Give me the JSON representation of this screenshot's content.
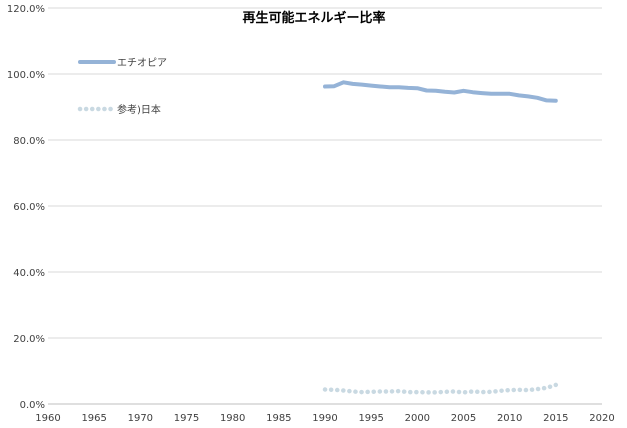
{
  "chart_data": {
    "type": "line",
    "title": "再生可能エネルギー比率",
    "xlabel": "",
    "ylabel": "",
    "xlim": [
      1960,
      2020
    ],
    "ylim": [
      0,
      120
    ],
    "x_ticks": [
      "1960",
      "1965",
      "1970",
      "1975",
      "1980",
      "1985",
      "1990",
      "1995",
      "2000",
      "2005",
      "2010",
      "2015",
      "2020"
    ],
    "y_ticks": [
      "0.0%",
      "20.0%",
      "40.0%",
      "60.0%",
      "80.0%",
      "100.0%",
      "120.0%"
    ],
    "grid": "horizontal",
    "legend_position": "top-left",
    "series": [
      {
        "name": "エチオピア",
        "color": "#95B3D7",
        "style": "solid",
        "x": [
          1990,
          1991,
          1992,
          1993,
          1994,
          1995,
          1996,
          1997,
          1998,
          1999,
          2000,
          2001,
          2002,
          2003,
          2004,
          2005,
          2006,
          2007,
          2008,
          2009,
          2010,
          2011,
          2012,
          2013,
          2014,
          2015
        ],
        "values": [
          96.2,
          96.3,
          97.5,
          97.0,
          96.8,
          96.5,
          96.2,
          96.0,
          96.0,
          95.8,
          95.7,
          95.0,
          94.9,
          94.6,
          94.4,
          94.9,
          94.5,
          94.2,
          94.0,
          94.0,
          94.0,
          93.5,
          93.2,
          92.8,
          92.0,
          91.9
        ]
      },
      {
        "name": "参考)日本",
        "color": "#C9D9E2",
        "style": "dotted",
        "x": [
          1990,
          1991,
          1992,
          1993,
          1994,
          1995,
          1996,
          1997,
          1998,
          1999,
          2000,
          2001,
          2002,
          2003,
          2004,
          2005,
          2006,
          2007,
          2008,
          2009,
          2010,
          2011,
          2012,
          2013,
          2014,
          2015
        ],
        "values": [
          4.4,
          4.3,
          4.1,
          3.8,
          3.6,
          3.7,
          3.8,
          3.8,
          3.9,
          3.6,
          3.6,
          3.5,
          3.5,
          3.7,
          3.8,
          3.5,
          3.8,
          3.6,
          3.7,
          4.0,
          4.2,
          4.3,
          4.2,
          4.5,
          4.9,
          5.8
        ]
      }
    ]
  }
}
